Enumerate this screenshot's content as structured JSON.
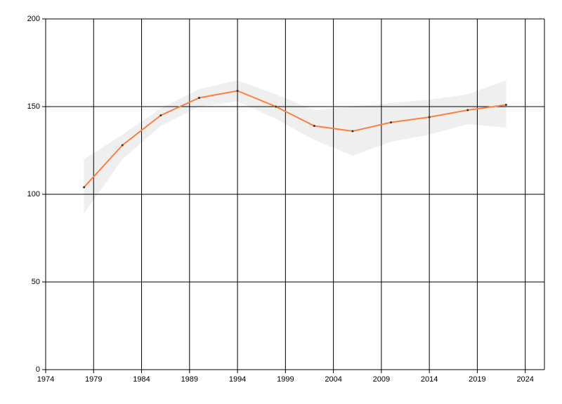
{
  "chart_data": {
    "type": "line",
    "x": [
      1978,
      1982,
      1986,
      1990,
      1994,
      1998,
      2002,
      2006,
      2010,
      2014,
      2018,
      2022
    ],
    "series": [
      {
        "color": "#ff7f3f",
        "values": [
          104,
          128,
          145,
          155,
          159,
          150,
          139,
          136,
          141,
          144,
          148,
          151
        ]
      }
    ],
    "band": {
      "color": "#efefef",
      "upper": [
        120,
        134,
        149,
        160,
        165,
        157,
        148,
        150,
        152,
        154,
        157,
        165
      ],
      "lower": [
        89,
        120,
        139,
        150,
        153,
        143,
        131,
        122,
        130,
        134,
        140,
        138
      ]
    },
    "xlim": [
      1974,
      2026
    ],
    "xticks": [
      1974,
      1979,
      1984,
      1989,
      1994,
      1999,
      2004,
      2009,
      2014,
      2019,
      2024
    ],
    "ylim": [
      0,
      200
    ],
    "yticks": [
      0,
      50,
      100,
      150,
      200
    ],
    "grid": true
  }
}
